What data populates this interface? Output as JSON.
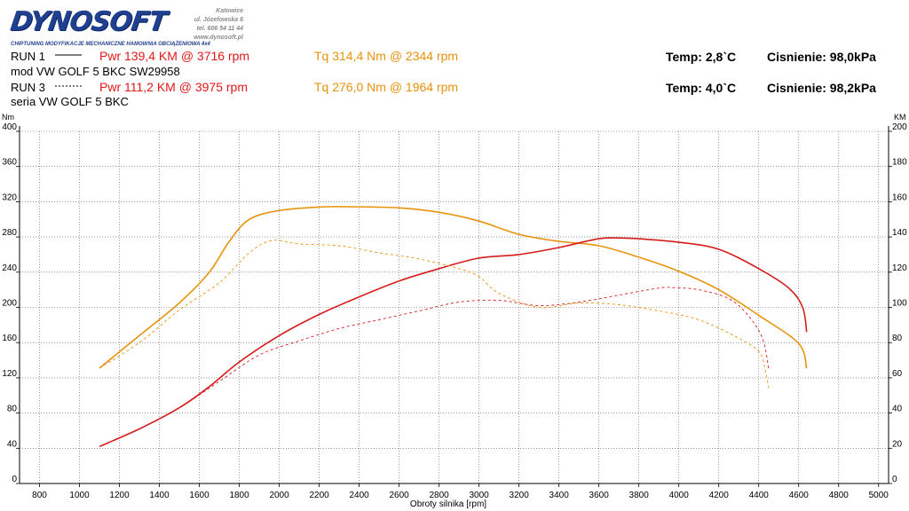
{
  "header": {
    "logo": "DYNOSOFT",
    "logo_sub": "CHIPTUNING   MODYFIKACJE MECHANICZNE   HAMOWNIA OBCIĄŻENIOWA 4x4",
    "address": [
      "Katowice",
      "ul. Józefowska 6",
      "tel. 606 54 11 44",
      "www.dynosoft.pl"
    ]
  },
  "runs": [
    {
      "label": "RUN 1",
      "pwr": "Pwr  139,4 KM @ 3716 rpm",
      "tq": "Tq 314,4 Nm @ 2344 rpm",
      "temp": "Temp: 2,8`C",
      "pressure": "Cisnienie: 98,0kPa",
      "desc": "mod VW GOLF 5 BKC SW29958"
    },
    {
      "label": "RUN 3",
      "pwr": "Pwr  111,2 KM @ 3975 rpm",
      "tq": "Tq 276,0 Nm @ 1964 rpm",
      "temp": "Temp: 4,0`C",
      "pressure": "Cisnienie: 98,2kPa",
      "desc": "seria VW GOLF 5 BKC"
    }
  ],
  "colors": {
    "power": "#d41c1c",
    "torque": "#e8930c"
  },
  "chart_data": {
    "type": "line",
    "xlabel": "Obroty silnika [rpm]",
    "ylabel_left": "Nm",
    "ylabel_right": "KM",
    "xlim": [
      700,
      5050
    ],
    "ylim_left": [
      0,
      400
    ],
    "ylim_right": [
      0,
      200
    ],
    "xticks": [
      800,
      1000,
      1200,
      1400,
      1600,
      1800,
      2000,
      2200,
      2400,
      2600,
      2800,
      3000,
      3200,
      3400,
      3600,
      3800,
      4000,
      4200,
      4400,
      4600,
      4800,
      5000
    ],
    "yticks_left": [
      0,
      40,
      80,
      120,
      160,
      200,
      240,
      280,
      320,
      360,
      400
    ],
    "yticks_right": [
      0,
      20,
      40,
      60,
      80,
      100,
      120,
      140,
      160,
      180,
      200
    ],
    "grid": true,
    "series": [
      {
        "name": "RUN 1",
        "kind": "torque",
        "axis": "left",
        "style": "solid",
        "x": [
          1100,
          1300,
          1500,
          1650,
          1750,
          1850,
          2000,
          2200,
          2344,
          2600,
          2800,
          3000,
          3200,
          3400,
          3600,
          3800,
          4000,
          4200,
          4400,
          4600,
          4640
        ],
        "y": [
          131,
          168,
          205,
          240,
          275,
          300,
          310,
          314,
          314.4,
          313,
          308,
          298,
          283,
          275,
          270,
          257,
          241,
          220,
          191,
          159,
          131
        ]
      },
      {
        "name": "RUN 1",
        "kind": "power",
        "axis": "right",
        "style": "solid",
        "x": [
          1100,
          1300,
          1500,
          1650,
          1800,
          2000,
          2200,
          2400,
          2600,
          2800,
          3000,
          3200,
          3400,
          3600,
          3716,
          3800,
          4000,
          4200,
          4400,
          4550,
          4620,
          4640
        ],
        "y": [
          21,
          31,
          43,
          55,
          69,
          84,
          96,
          106,
          115,
          122,
          128,
          130,
          134,
          139,
          139.4,
          139,
          137,
          133,
          122,
          111,
          100,
          86
        ]
      },
      {
        "name": "RUN 3",
        "kind": "torque",
        "axis": "left",
        "style": "dashed",
        "x": [
          1100,
          1300,
          1500,
          1700,
          1850,
          1964,
          2100,
          2300,
          2500,
          2700,
          2900,
          3000,
          3100,
          3300,
          3500,
          3700,
          3900,
          4100,
          4300,
          4400,
          4430,
          4450
        ],
        "y": [
          131,
          160,
          197,
          228,
          262,
          276,
          272,
          270,
          262,
          255,
          244,
          235,
          216,
          200,
          205,
          203,
          196,
          186,
          165,
          150,
          132,
          108
        ]
      },
      {
        "name": "RUN 3",
        "kind": "power",
        "axis": "right",
        "style": "dashed",
        "x": [
          1100,
          1300,
          1500,
          1700,
          1900,
          2100,
          2300,
          2500,
          2700,
          2900,
          3100,
          3300,
          3500,
          3700,
          3900,
          3975,
          4100,
          4250,
          4350,
          4420,
          4450
        ],
        "y": [
          21,
          31,
          43,
          58,
          73,
          81,
          88,
          93,
          98,
          103,
          104,
          101,
          103,
          107,
          111,
          111.2,
          110,
          105,
          95,
          82,
          65
        ]
      }
    ]
  }
}
